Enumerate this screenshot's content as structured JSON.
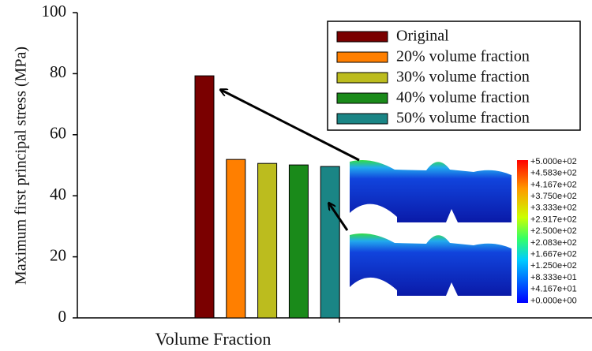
{
  "chart_data": {
    "type": "bar",
    "ylabel": "Maximum first principal stress (MPa)",
    "xlabel": "Volume Fraction",
    "categories": [
      null
    ],
    "series": [
      {
        "name": "Original",
        "color": "#7a0000",
        "values": [
          79.3
        ]
      },
      {
        "name": "20% volume fraction",
        "color": "#ff7f00",
        "values": [
          51.9
        ]
      },
      {
        "name": "30% volume fraction",
        "color": "#bcbc1e",
        "values": [
          50.6
        ]
      },
      {
        "name": "40% volume fraction",
        "color": "#1a8a1a",
        "values": [
          50.1
        ]
      },
      {
        "name": "50% volume fraction",
        "color": "#1a8585",
        "values": [
          49.6
        ]
      }
    ],
    "ylim": [
      0,
      100
    ],
    "yticks": [
      0,
      20,
      40,
      60,
      80,
      100
    ],
    "legend": "upper-right",
    "colorbar_labels": [
      "+5.000e+02",
      "+4.583e+02",
      "+4.167e+02",
      "+3.750e+02",
      "+3.333e+02",
      "+2.917e+02",
      "+2.500e+02",
      "+2.083e+02",
      "+1.667e+02",
      "+1.250e+02",
      "+8.333e+01",
      "+4.167e+01",
      "+0.000e+00"
    ]
  }
}
